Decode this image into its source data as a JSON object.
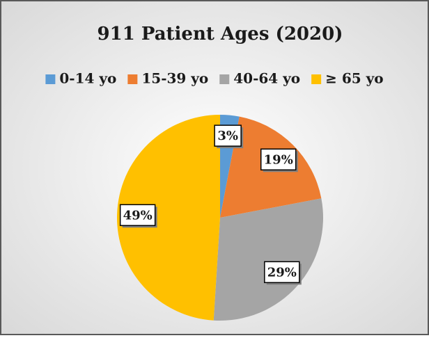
{
  "chart_data": {
    "type": "pie",
    "title": "911 Patient Ages (2020)",
    "categories": [
      "0-14 yo",
      "15-39 yo",
      "40-64 yo",
      "≥ 65 yo"
    ],
    "values": [
      3,
      19,
      29,
      49
    ],
    "value_labels": [
      "3%",
      "19%",
      "29%",
      "49%"
    ],
    "colors": [
      "#5b9bd5",
      "#ed7d31",
      "#a5a5a5",
      "#ffc000"
    ],
    "legend": "top"
  }
}
